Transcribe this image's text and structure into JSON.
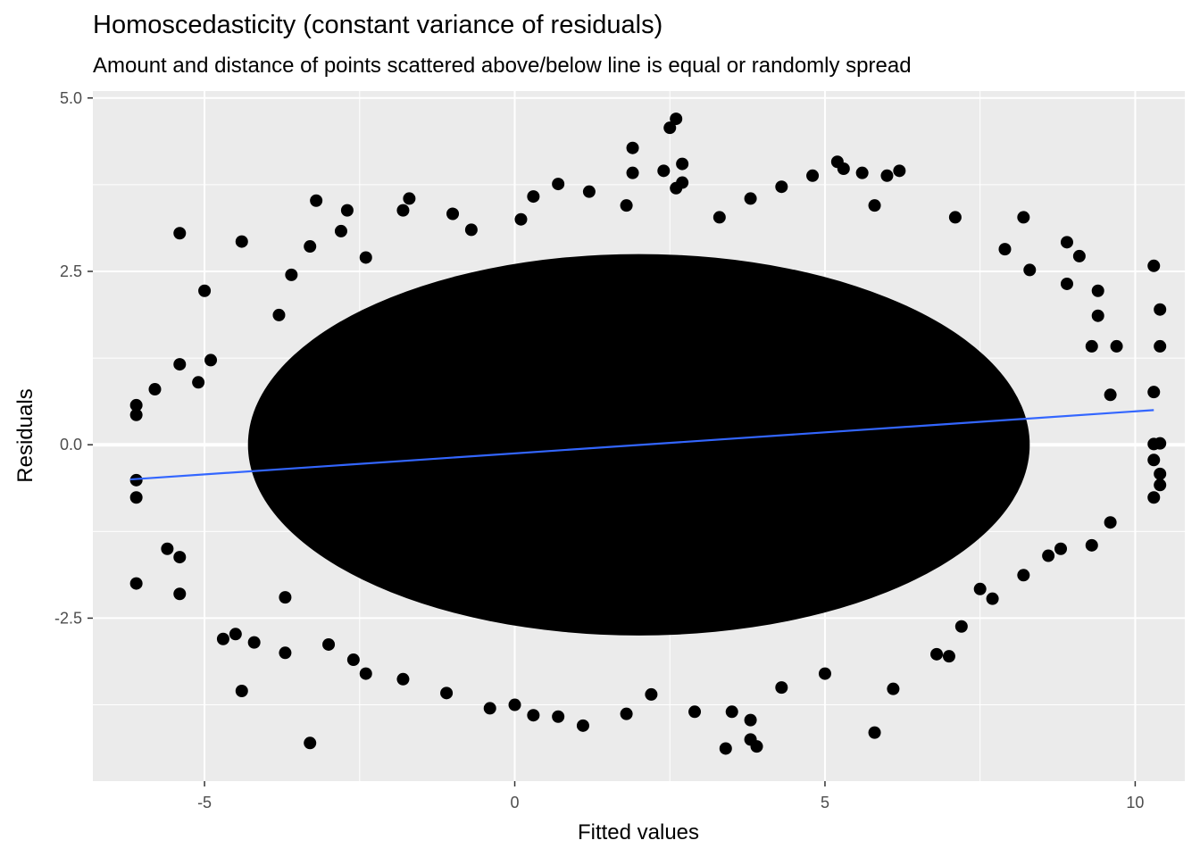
{
  "chart_data": {
    "type": "scatter",
    "title": "Homoscedasticity (constant variance of residuals)",
    "subtitle": "Amount and distance of points scattered above/below line is equal or randomly spread",
    "xlabel": "Fitted values",
    "ylabel": "Residuals",
    "xlim": [
      -6.8,
      10.8
    ],
    "ylim": [
      -4.85,
      5.1
    ],
    "x_ticks": [
      -5,
      0,
      5,
      10
    ],
    "x_tick_labels": [
      "-5",
      "0",
      "5",
      "10"
    ],
    "y_ticks": [
      -2.5,
      0.0,
      2.5,
      5.0
    ],
    "y_tick_labels": [
      "-2.5",
      "0.0",
      "2.5",
      "5.0"
    ],
    "grid": true,
    "hline_y": 0,
    "point_color": "#000000",
    "fit_line": {
      "color": "#3366FF",
      "x": [
        -6.2,
        10.3
      ],
      "y": [
        -0.5,
        0.5
      ]
    },
    "dense_core": {
      "x_center": 2.0,
      "y_center": 0.0,
      "x_halfwidth": 6.3,
      "y_halfwidth": 2.75
    },
    "points": [
      [
        -6.1,
        0.57
      ],
      [
        -6.1,
        0.43
      ],
      [
        -6.1,
        -0.51
      ],
      [
        -6.1,
        -0.76
      ],
      [
        -6.1,
        -2.0
      ],
      [
        -5.8,
        0.8
      ],
      [
        -5.6,
        -1.5
      ],
      [
        -5.4,
        3.05
      ],
      [
        -5.4,
        1.16
      ],
      [
        -5.4,
        -2.15
      ],
      [
        -5.4,
        -1.62
      ],
      [
        -5.1,
        0.9
      ],
      [
        -5.0,
        2.22
      ],
      [
        -4.9,
        1.22
      ],
      [
        -4.7,
        -2.8
      ],
      [
        -4.4,
        2.93
      ],
      [
        -4.5,
        -2.73
      ],
      [
        -4.2,
        -2.85
      ],
      [
        -4.4,
        -3.55
      ],
      [
        -3.8,
        1.87
      ],
      [
        -3.6,
        2.45
      ],
      [
        -3.7,
        -2.2
      ],
      [
        -3.7,
        -3.0
      ],
      [
        -3.3,
        2.86
      ],
      [
        -3.2,
        3.52
      ],
      [
        -3.3,
        -4.3
      ],
      [
        -2.7,
        3.38
      ],
      [
        -2.8,
        3.08
      ],
      [
        -2.4,
        2.7
      ],
      [
        -1.8,
        3.38
      ],
      [
        -1.7,
        3.55
      ],
      [
        -1.0,
        3.33
      ],
      [
        -0.7,
        3.1
      ],
      [
        0.1,
        3.25
      ],
      [
        0.3,
        3.58
      ],
      [
        0.7,
        3.76
      ],
      [
        1.2,
        3.65
      ],
      [
        1.8,
        3.45
      ],
      [
        1.9,
        4.28
      ],
      [
        1.9,
        3.92
      ],
      [
        2.4,
        3.95
      ],
      [
        2.5,
        4.57
      ],
      [
        2.6,
        4.7
      ],
      [
        2.7,
        4.05
      ],
      [
        2.6,
        3.7
      ],
      [
        2.7,
        3.78
      ],
      [
        3.3,
        3.28
      ],
      [
        3.8,
        3.55
      ],
      [
        4.3,
        3.72
      ],
      [
        4.8,
        3.88
      ],
      [
        5.2,
        4.08
      ],
      [
        5.3,
        3.98
      ],
      [
        5.6,
        3.92
      ],
      [
        5.8,
        3.45
      ],
      [
        6.2,
        3.95
      ],
      [
        6.0,
        3.88
      ],
      [
        7.1,
        3.28
      ],
      [
        7.9,
        2.82
      ],
      [
        8.2,
        3.28
      ],
      [
        8.3,
        2.52
      ],
      [
        8.9,
        2.92
      ],
      [
        9.1,
        2.72
      ],
      [
        8.9,
        2.32
      ],
      [
        9.4,
        2.22
      ],
      [
        9.4,
        1.86
      ],
      [
        9.3,
        1.42
      ],
      [
        9.7,
        1.42
      ],
      [
        9.6,
        0.72
      ],
      [
        10.3,
        2.58
      ],
      [
        10.4,
        1.95
      ],
      [
        10.4,
        1.42
      ],
      [
        10.3,
        0.76
      ],
      [
        10.3,
        0.01
      ],
      [
        10.4,
        0.02
      ],
      [
        10.3,
        -0.22
      ],
      [
        10.4,
        -0.42
      ],
      [
        10.4,
        -0.58
      ],
      [
        10.3,
        -0.76
      ],
      [
        9.6,
        -1.12
      ],
      [
        9.3,
        -1.45
      ],
      [
        8.8,
        -1.5
      ],
      [
        8.6,
        -1.6
      ],
      [
        8.2,
        -1.88
      ],
      [
        7.7,
        -2.22
      ],
      [
        7.5,
        -2.08
      ],
      [
        7.2,
        -2.62
      ],
      [
        6.8,
        -3.02
      ],
      [
        7.0,
        -3.05
      ],
      [
        6.1,
        -3.52
      ],
      [
        5.8,
        -4.15
      ],
      [
        5.0,
        -3.3
      ],
      [
        4.3,
        -3.5
      ],
      [
        3.8,
        -4.25
      ],
      [
        3.9,
        -4.35
      ],
      [
        3.8,
        -3.97
      ],
      [
        3.4,
        -4.38
      ],
      [
        3.5,
        -3.85
      ],
      [
        2.9,
        -3.85
      ],
      [
        2.2,
        -3.6
      ],
      [
        1.8,
        -3.88
      ],
      [
        1.1,
        -4.05
      ],
      [
        0.7,
        -3.92
      ],
      [
        0.3,
        -3.9
      ],
      [
        0.0,
        -3.75
      ],
      [
        -0.4,
        -3.8
      ],
      [
        -1.1,
        -3.58
      ],
      [
        -1.8,
        -3.38
      ],
      [
        -2.4,
        -3.3
      ],
      [
        -2.6,
        -3.1
      ],
      [
        -3.0,
        -2.88
      ]
    ]
  }
}
